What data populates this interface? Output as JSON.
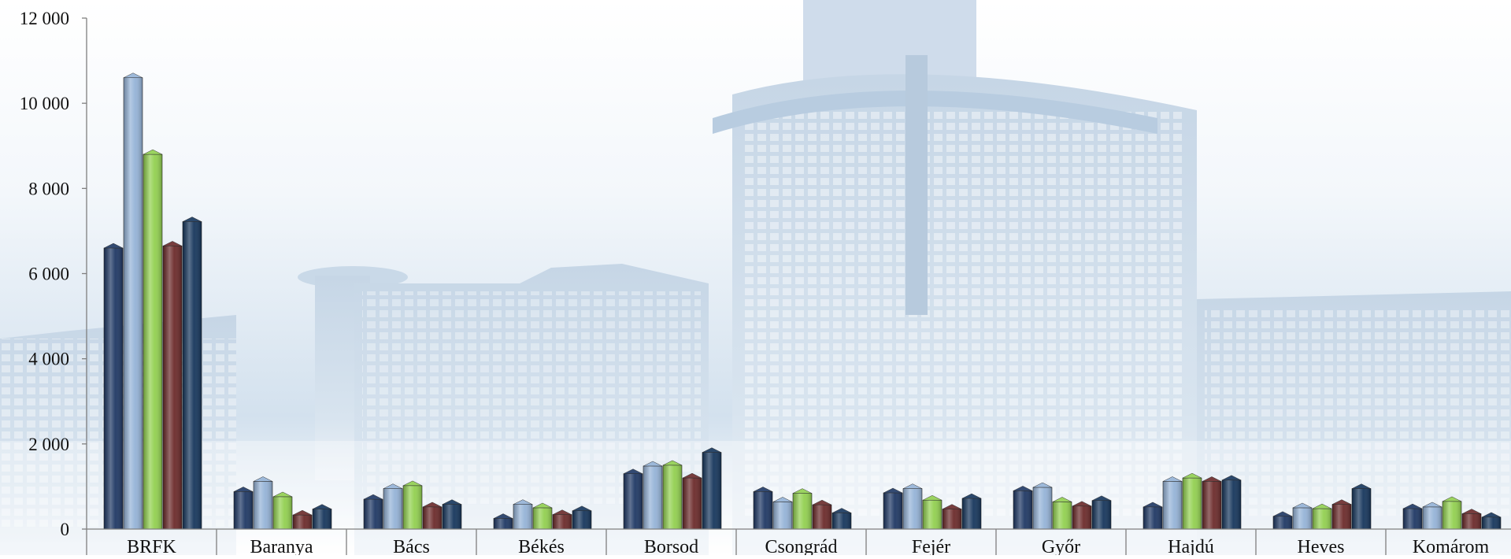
{
  "chart_data": {
    "type": "bar",
    "title": "",
    "xlabel": "",
    "ylabel": "",
    "ylim": [
      0,
      12000
    ],
    "yticks": [
      0,
      2000,
      4000,
      6000,
      8000,
      10000,
      12000
    ],
    "ytick_labels": [
      "0",
      "2 000",
      "4 000",
      "6 000",
      "8 000",
      "10 000",
      "12 000"
    ],
    "grid": false,
    "legend": "none",
    "categories": [
      "BRFK",
      "Baranya",
      "Bács",
      "Békés",
      "Borsod",
      "Csongrád",
      "Fejér",
      "Győr",
      "Hajdú",
      "Heves",
      "Komárom"
    ],
    "series": [
      {
        "color": "#1f3864",
        "values": [
          6600,
          880,
          700,
          250,
          1300,
          880,
          850,
          900,
          520,
          300,
          480
        ]
      },
      {
        "color": "#95b3d7",
        "values": [
          10600,
          1120,
          950,
          580,
          1480,
          640,
          950,
          980,
          1120,
          500,
          520
        ]
      },
      {
        "color": "#92d050",
        "values": [
          8800,
          760,
          1020,
          500,
          1500,
          840,
          680,
          640,
          1200,
          480,
          650
        ]
      },
      {
        "color": "#6b2a2a",
        "values": [
          6650,
          330,
          520,
          340,
          1200,
          570,
          470,
          540,
          1120,
          580,
          360
        ]
      },
      {
        "color": "#16365c",
        "values": [
          7220,
          470,
          580,
          430,
          1800,
          380,
          720,
          670,
          1150,
          950,
          280
        ]
      }
    ]
  }
}
